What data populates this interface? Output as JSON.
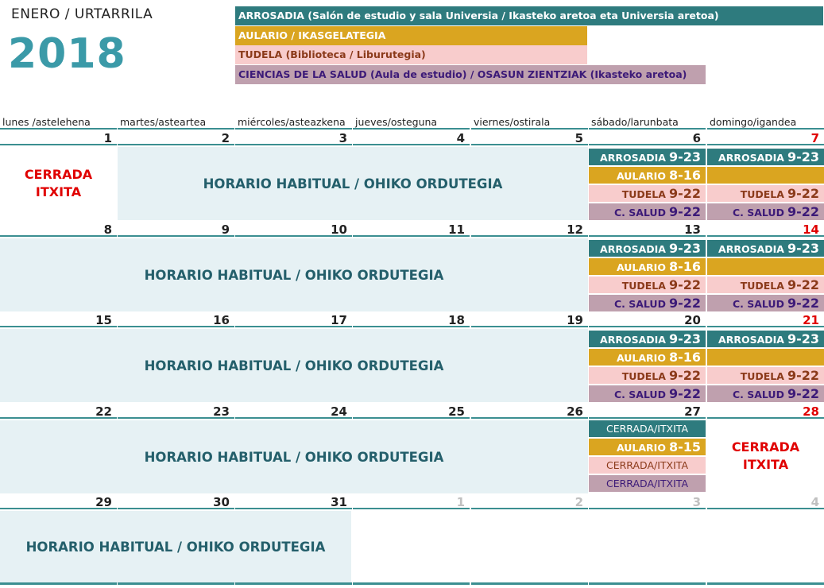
{
  "header": {
    "month_label": "ENERO / URTARRILA",
    "year": "2018"
  },
  "legend": [
    {
      "label": "ARROSADIA (Salón de estudio y sala Universia / Ikasteko aretoa eta Universia aretoa)",
      "color": "#2e7b7e",
      "text_color": "#ffffff"
    },
    {
      "label": "AULARIO / IKASGELATEGIA",
      "color": "#daa520",
      "text_color": "#ffffff"
    },
    {
      "label": "TUDELA (Biblioteca / Liburutegia)",
      "color": "#f8cccc",
      "text_color": "#8b3a1a"
    },
    {
      "label": "CIENCIAS DE LA SALUD (Aula de estudio) / OSASUN ZIENTZIAK (Ikasteko aretoa)",
      "color": "#bfa0ae",
      "text_color": "#3c1a78"
    }
  ],
  "weekdays": [
    "lunes /astelehena",
    "martes/asteartea",
    "miércoles/asteazkena",
    "jueves/osteguna",
    "viernes/ostirala",
    "sábado/larunbata",
    "domingo/igandea"
  ],
  "weeks": [
    {
      "days": [
        "1",
        "2",
        "3",
        "4",
        "5",
        "6",
        "7"
      ]
    },
    {
      "days": [
        "8",
        "9",
        "10",
        "11",
        "12",
        "13",
        "14"
      ]
    },
    {
      "days": [
        "15",
        "16",
        "17",
        "18",
        "19",
        "20",
        "21"
      ]
    },
    {
      "days": [
        "22",
        "23",
        "24",
        "25",
        "26",
        "27",
        "28"
      ]
    },
    {
      "days": [
        "29",
        "30",
        "31",
        "1",
        "2",
        "3",
        "4"
      ]
    }
  ],
  "habitual_label": "HORARIO HABITUAL / OHIKO ORDUTEGIA",
  "closed": {
    "line1": "CERRADA",
    "line2": "ITXITA"
  },
  "schedule": {
    "arrosadia_label": "ARROSADIA",
    "aulario_label": "AULARIO",
    "tudela_label": "TUDELA",
    "salud_label": "C. SALUD",
    "saturday_hours": {
      "arrosadia": "9-23",
      "aulario": "8-16",
      "tudela": "9-22",
      "salud": "9-22"
    },
    "sunday_hours": {
      "arrosadia": "9-23",
      "tudela": "9-22",
      "salud": "9-22"
    },
    "day27": {
      "arrosadia": "CERRADA/ITXITA",
      "aulario_hours": "8-15",
      "tudela": "CERRADA/ITXITA",
      "salud": "CERRADA/ITXITA"
    }
  }
}
